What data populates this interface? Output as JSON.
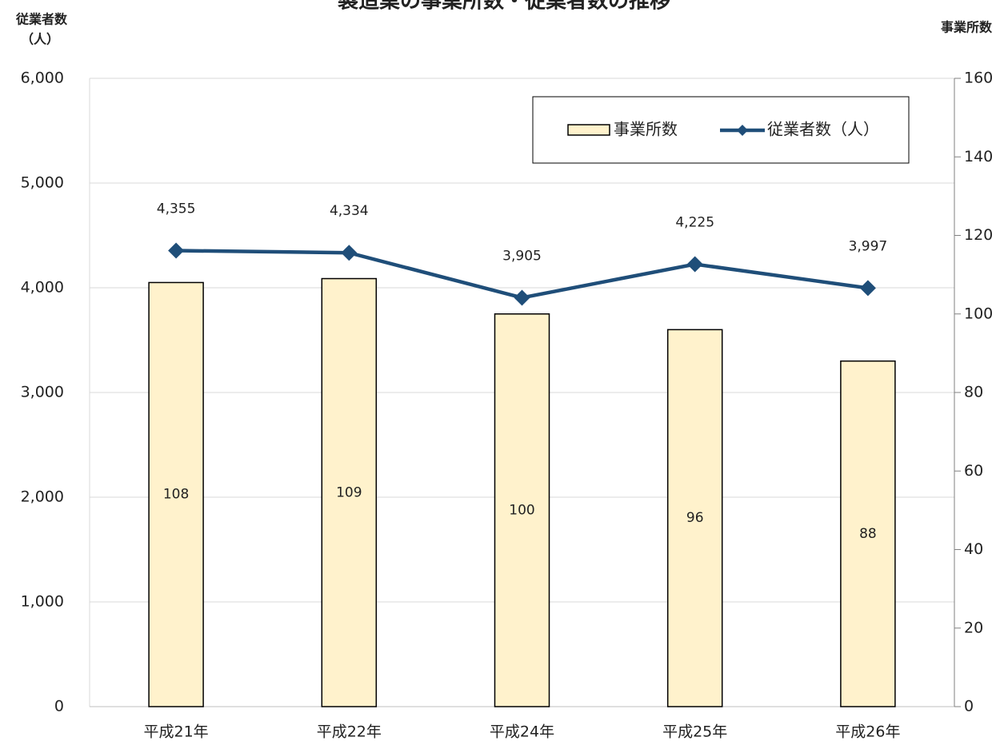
{
  "chart_data": {
    "type": "bar+line",
    "title": "製造業の事業所数・従業者数の推移",
    "y_label": "従業者数",
    "y_label_unit": "（人）",
    "y2_label": "事業所数",
    "categories": [
      "平成21年",
      "平成22年",
      "平成24年",
      "平成25年",
      "平成26年"
    ],
    "series": [
      {
        "name": "事業所数",
        "type": "bar",
        "axis": "y2",
        "color": "#fff2cc",
        "edge_color": "#000000",
        "values": [
          108,
          109,
          100,
          96,
          88
        ]
      },
      {
        "name": "従業者数（人）",
        "type": "line",
        "axis": "y",
        "color": "#1f4e79",
        "values": [
          4355,
          4334,
          3905,
          4225,
          3997
        ],
        "value_labels": [
          "4,355",
          "4,334",
          "3,905",
          "4,225",
          "3,997"
        ]
      }
    ],
    "ylim": [
      0,
      6000
    ],
    "yticks": [
      0,
      {
        "value": 1000,
        "label": "1,000"
      },
      {
        "value": 2000,
        "label": "2,000"
      },
      {
        "value": 3000,
        "label": "3,000"
      },
      {
        "value": 4000,
        "label": "4,000"
      },
      {
        "value": 5000,
        "label": "5,000"
      },
      {
        "value": 6000,
        "label": "6,000"
      }
    ],
    "y2lim": [
      0,
      160
    ],
    "y2ticks": [
      0,
      20,
      40,
      60,
      80,
      100,
      120,
      140,
      160
    ],
    "grid": true,
    "legend": "top-right"
  }
}
